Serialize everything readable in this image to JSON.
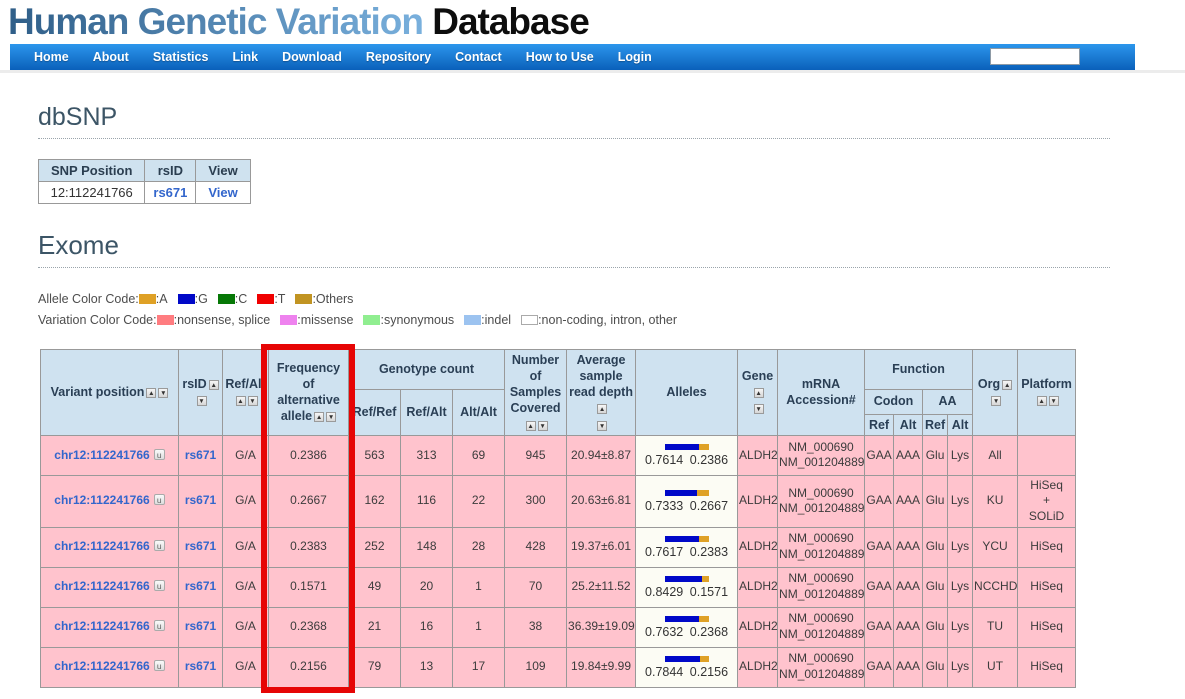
{
  "site": {
    "title_primary": "Human Genetic Variation",
    "title_secondary": "Database"
  },
  "nav": {
    "items": [
      "Home",
      "About",
      "Statistics",
      "Link",
      "Download",
      "Repository",
      "Contact",
      "How to Use",
      "Login"
    ],
    "search_value": ""
  },
  "dbsnp": {
    "heading": "dbSNP",
    "table": {
      "headers": [
        "SNP Position",
        "rsID",
        "View"
      ],
      "row": {
        "position": "12:112241766",
        "rsid": "rs671",
        "view": "View"
      }
    }
  },
  "exome": {
    "heading": "Exome",
    "allele_legend": {
      "label": "Allele Color Code:",
      "items": [
        {
          "name": "A",
          "color": "#DFA126"
        },
        {
          "name": "G",
          "color": "#0008C8"
        },
        {
          "name": "C",
          "color": "#067806"
        },
        {
          "name": "T",
          "color": "#F00000"
        },
        {
          "name": "Others",
          "color": "#C19422"
        }
      ]
    },
    "variation_legend": {
      "label": "Variation Color Code:",
      "items": [
        {
          "name": "nonsense, splice",
          "color": "#FF7C80"
        },
        {
          "name": "missense",
          "color": "#EE82EE"
        },
        {
          "name": "synonymous",
          "color": "#90EE90"
        },
        {
          "name": "indel",
          "color": "#9CC3F0"
        },
        {
          "name": "non-coding, intron, other",
          "color": "#FFFFFF"
        }
      ]
    },
    "table": {
      "headers": {
        "variant": "Variant position",
        "rsid": "rsID",
        "ref_alt": "Ref/Alt",
        "frequency": "Frequency of alternative allele",
        "genotype": "Genotype count",
        "gt_sub": [
          "Ref/Ref",
          "Ref/Alt",
          "Alt/Alt"
        ],
        "samples": "Number of Samples Covered",
        "depth": "Average sample read depth",
        "alleles": "Alleles",
        "gene": "Gene",
        "mrna": "mRNA Accession#",
        "function": "Function",
        "codon": "Codon",
        "aa": "AA",
        "fn_sub": [
          "Ref",
          "Alt",
          "Ref",
          "Alt"
        ],
        "org": "Org",
        "platform": "Platform"
      },
      "rows": [
        {
          "variant": "chr12:112241766",
          "rsid": "rs671",
          "ref_alt": "G/A",
          "freq": "0.2386",
          "gt_rr": "563",
          "gt_ra": "313",
          "gt_aa": "69",
          "samples": "945",
          "depth": "20.94±8.87",
          "allele_ref": "0.7614",
          "allele_alt": "0.2386",
          "gene": "ALDH2",
          "mrna": [
            "NM_000690",
            "NM_001204889"
          ],
          "codon_ref": "GAA",
          "codon_alt": "AAA",
          "aa_ref": "Glu",
          "aa_alt": "Lys",
          "org": "All",
          "platform": ""
        },
        {
          "variant": "chr12:112241766",
          "rsid": "rs671",
          "ref_alt": "G/A",
          "freq": "0.2667",
          "gt_rr": "162",
          "gt_ra": "116",
          "gt_aa": "22",
          "samples": "300",
          "depth": "20.63±6.81",
          "allele_ref": "0.7333",
          "allele_alt": "0.2667",
          "gene": "ALDH2",
          "mrna": [
            "NM_000690",
            "NM_001204889"
          ],
          "codon_ref": "GAA",
          "codon_alt": "AAA",
          "aa_ref": "Glu",
          "aa_alt": "Lys",
          "org": "KU",
          "platform": "HiSeq + SOLiD"
        },
        {
          "variant": "chr12:112241766",
          "rsid": "rs671",
          "ref_alt": "G/A",
          "freq": "0.2383",
          "gt_rr": "252",
          "gt_ra": "148",
          "gt_aa": "28",
          "samples": "428",
          "depth": "19.37±6.01",
          "allele_ref": "0.7617",
          "allele_alt": "0.2383",
          "gene": "ALDH2",
          "mrna": [
            "NM_000690",
            "NM_001204889"
          ],
          "codon_ref": "GAA",
          "codon_alt": "AAA",
          "aa_ref": "Glu",
          "aa_alt": "Lys",
          "org": "YCU",
          "platform": "HiSeq"
        },
        {
          "variant": "chr12:112241766",
          "rsid": "rs671",
          "ref_alt": "G/A",
          "freq": "0.1571",
          "gt_rr": "49",
          "gt_ra": "20",
          "gt_aa": "1",
          "samples": "70",
          "depth": "25.2±11.52",
          "allele_ref": "0.8429",
          "allele_alt": "0.1571",
          "gene": "ALDH2",
          "mrna": [
            "NM_000690",
            "NM_001204889"
          ],
          "codon_ref": "GAA",
          "codon_alt": "AAA",
          "aa_ref": "Glu",
          "aa_alt": "Lys",
          "org": "NCCHD",
          "platform": "HiSeq"
        },
        {
          "variant": "chr12:112241766",
          "rsid": "rs671",
          "ref_alt": "G/A",
          "freq": "0.2368",
          "gt_rr": "21",
          "gt_ra": "16",
          "gt_aa": "1",
          "samples": "38",
          "depth": "36.39±19.09",
          "allele_ref": "0.7632",
          "allele_alt": "0.2368",
          "gene": "ALDH2",
          "mrna": [
            "NM_000690",
            "NM_001204889"
          ],
          "codon_ref": "GAA",
          "codon_alt": "AAA",
          "aa_ref": "Glu",
          "aa_alt": "Lys",
          "org": "TU",
          "platform": "HiSeq"
        },
        {
          "variant": "chr12:112241766",
          "rsid": "rs671",
          "ref_alt": "G/A",
          "freq": "0.2156",
          "gt_rr": "79",
          "gt_ra": "13",
          "gt_aa": "17",
          "samples": "109",
          "depth": "19.84±9.99",
          "allele_ref": "0.7844",
          "allele_alt": "0.2156",
          "gene": "ALDH2",
          "mrna": [
            "NM_000690",
            "NM_001204889"
          ],
          "codon_ref": "GAA",
          "codon_alt": "AAA",
          "aa_ref": "Glu",
          "aa_alt": "Lys",
          "org": "UT",
          "platform": "HiSeq"
        }
      ]
    }
  }
}
